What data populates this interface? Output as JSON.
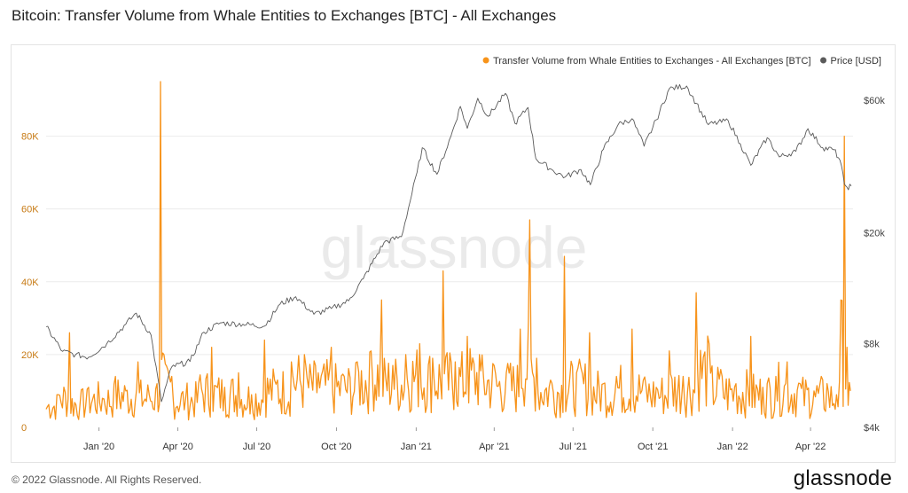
{
  "title": "Bitcoin: Transfer Volume from Whale Entities to Exchanges [BTC] - All Exchanges",
  "footer": {
    "copyright": "© 2022 Glassnode. All Rights Reserved.",
    "brand": "glassnode"
  },
  "watermark": "glassnode",
  "colors": {
    "volume": "#f7931a",
    "price": "#5a5a5a",
    "grid": "#ececec",
    "axis_left": "#c77a14",
    "axis_right": "#444444"
  },
  "chart_data": {
    "type": "line",
    "title": "Bitcoin: Transfer Volume from Whale Entities to Exchanges [BTC] - All Exchanges",
    "legend_position": "top-right",
    "grid": true,
    "x_axis": {
      "range": [
        "2019-11-01",
        "2022-05-20"
      ],
      "ticks": [
        {
          "date": "2020-01-01",
          "label": "Jan '20"
        },
        {
          "date": "2020-04-01",
          "label": "Apr '20"
        },
        {
          "date": "2020-07-01",
          "label": "Jul '20"
        },
        {
          "date": "2020-10-01",
          "label": "Oct '20"
        },
        {
          "date": "2021-01-01",
          "label": "Jan '21"
        },
        {
          "date": "2021-04-01",
          "label": "Apr '21"
        },
        {
          "date": "2021-07-01",
          "label": "Jul '21"
        },
        {
          "date": "2021-10-01",
          "label": "Oct '21"
        },
        {
          "date": "2022-01-01",
          "label": "Jan '22"
        },
        {
          "date": "2022-04-01",
          "label": "Apr '22"
        }
      ]
    },
    "y_left": {
      "range": [
        0,
        95000
      ],
      "ticks": [
        {
          "value": 0,
          "label": "0"
        },
        {
          "value": 20000,
          "label": "20K"
        },
        {
          "value": 40000,
          "label": "40K"
        },
        {
          "value": 60000,
          "label": "60K"
        },
        {
          "value": 80000,
          "label": "80K"
        }
      ]
    },
    "y_right": {
      "scale": "log",
      "range": [
        4000,
        70000
      ],
      "ticks": [
        {
          "value": 4000,
          "label": "$4k"
        },
        {
          "value": 8000,
          "label": "$8k"
        },
        {
          "value": 20000,
          "label": "$20k"
        },
        {
          "value": 60000,
          "label": "$60k"
        }
      ]
    },
    "series": [
      {
        "name": "Transfer Volume from Whale Entities to Exchanges - All Exchanges [BTC]",
        "axis": "left",
        "color": "#f7931a",
        "points": [
          [
            "2019-11-01",
            5000
          ],
          [
            "2019-11-15",
            9000
          ],
          [
            "2019-11-28",
            26000
          ],
          [
            "2019-12-10",
            6000
          ],
          [
            "2019-12-20",
            11000
          ],
          [
            "2020-01-05",
            8000
          ],
          [
            "2020-01-20",
            14000
          ],
          [
            "2020-02-01",
            10000
          ],
          [
            "2020-02-15",
            18000
          ],
          [
            "2020-02-28",
            9000
          ],
          [
            "2020-03-08",
            12000
          ],
          [
            "2020-03-12",
            95000
          ],
          [
            "2020-03-16",
            20000
          ],
          [
            "2020-03-25",
            14000
          ],
          [
            "2020-04-10",
            8000
          ],
          [
            "2020-04-25",
            12000
          ],
          [
            "2020-05-10",
            22000
          ],
          [
            "2020-05-25",
            11000
          ],
          [
            "2020-06-10",
            15000
          ],
          [
            "2020-06-25",
            9000
          ],
          [
            "2020-07-10",
            24000
          ],
          [
            "2020-07-25",
            13000
          ],
          [
            "2020-08-10",
            18000
          ],
          [
            "2020-08-25",
            20000
          ],
          [
            "2020-09-10",
            15000
          ],
          [
            "2020-09-25",
            22000
          ],
          [
            "2020-10-10",
            14000
          ],
          [
            "2020-10-25",
            18000
          ],
          [
            "2020-11-10",
            21000
          ],
          [
            "2020-11-22",
            35000
          ],
          [
            "2020-12-05",
            17000
          ],
          [
            "2020-12-20",
            20000
          ],
          [
            "2021-01-05",
            23000
          ],
          [
            "2021-01-20",
            19000
          ],
          [
            "2021-02-01",
            43000
          ],
          [
            "2021-02-15",
            18000
          ],
          [
            "2021-03-01",
            25000
          ],
          [
            "2021-03-15",
            20000
          ],
          [
            "2021-04-01",
            17000
          ],
          [
            "2021-04-15",
            15000
          ],
          [
            "2021-05-01",
            27000
          ],
          [
            "2021-05-12",
            57000
          ],
          [
            "2021-05-20",
            19000
          ],
          [
            "2021-06-05",
            13000
          ],
          [
            "2021-06-21",
            47000
          ],
          [
            "2021-07-05",
            15000
          ],
          [
            "2021-07-20",
            26000
          ],
          [
            "2021-08-05",
            12000
          ],
          [
            "2021-08-20",
            14000
          ],
          [
            "2021-09-07",
            27000
          ],
          [
            "2021-09-20",
            13000
          ],
          [
            "2021-10-05",
            11000
          ],
          [
            "2021-10-20",
            21000
          ],
          [
            "2021-11-05",
            14000
          ],
          [
            "2021-11-20",
            37000
          ],
          [
            "2021-12-05",
            23000
          ],
          [
            "2021-12-20",
            14000
          ],
          [
            "2022-01-05",
            12000
          ],
          [
            "2022-01-22",
            25000
          ],
          [
            "2022-02-05",
            11000
          ],
          [
            "2022-02-20",
            14000
          ],
          [
            "2022-03-05",
            18000
          ],
          [
            "2022-03-20",
            12000
          ],
          [
            "2022-04-05",
            10000
          ],
          [
            "2022-04-20",
            12000
          ],
          [
            "2022-05-01",
            9000
          ],
          [
            "2022-05-06",
            35000
          ],
          [
            "2022-05-10",
            80000
          ],
          [
            "2022-05-13",
            22000
          ],
          [
            "2022-05-17",
            10000
          ]
        ]
      },
      {
        "name": "Price [USD]",
        "axis": "right",
        "color": "#5a5a5a",
        "points": [
          [
            "2019-11-01",
            9200
          ],
          [
            "2019-11-20",
            7500
          ],
          [
            "2019-12-05",
            7300
          ],
          [
            "2019-12-20",
            7150
          ],
          [
            "2020-01-10",
            8000
          ],
          [
            "2020-02-01",
            9400
          ],
          [
            "2020-02-13",
            10300
          ],
          [
            "2020-03-01",
            8600
          ],
          [
            "2020-03-13",
            4950
          ],
          [
            "2020-03-25",
            6600
          ],
          [
            "2020-04-15",
            6900
          ],
          [
            "2020-05-01",
            8800
          ],
          [
            "2020-05-20",
            9500
          ],
          [
            "2020-06-15",
            9400
          ],
          [
            "2020-07-10",
            9250
          ],
          [
            "2020-07-28",
            11100
          ],
          [
            "2020-08-15",
            11800
          ],
          [
            "2020-09-05",
            10200
          ],
          [
            "2020-09-25",
            10700
          ],
          [
            "2020-10-15",
            11400
          ],
          [
            "2020-11-01",
            13700
          ],
          [
            "2020-11-25",
            18500
          ],
          [
            "2020-12-15",
            19400
          ],
          [
            "2021-01-02",
            33000
          ],
          [
            "2021-01-08",
            40500
          ],
          [
            "2021-01-25",
            32500
          ],
          [
            "2021-02-10",
            44500
          ],
          [
            "2021-02-21",
            57000
          ],
          [
            "2021-03-01",
            47500
          ],
          [
            "2021-03-13",
            61000
          ],
          [
            "2021-03-25",
            52500
          ],
          [
            "2021-04-14",
            63500
          ],
          [
            "2021-04-25",
            49500
          ],
          [
            "2021-05-10",
            56500
          ],
          [
            "2021-05-19",
            37000
          ],
          [
            "2021-06-08",
            33500
          ],
          [
            "2021-06-22",
            31800
          ],
          [
            "2021-07-10",
            33800
          ],
          [
            "2021-07-21",
            29800
          ],
          [
            "2021-08-05",
            40000
          ],
          [
            "2021-08-22",
            49000
          ],
          [
            "2021-09-07",
            51500
          ],
          [
            "2021-09-21",
            41000
          ],
          [
            "2021-10-05",
            51000
          ],
          [
            "2021-10-20",
            66000
          ],
          [
            "2021-11-09",
            67500
          ],
          [
            "2021-11-20",
            58500
          ],
          [
            "2021-12-04",
            49000
          ],
          [
            "2021-12-27",
            50700
          ],
          [
            "2022-01-10",
            41800
          ],
          [
            "2022-01-22",
            35000
          ],
          [
            "2022-02-10",
            44000
          ],
          [
            "2022-02-24",
            37500
          ],
          [
            "2022-03-15",
            39300
          ],
          [
            "2022-03-29",
            47400
          ],
          [
            "2022-04-15",
            40500
          ],
          [
            "2022-04-28",
            39800
          ],
          [
            "2022-05-05",
            36500
          ],
          [
            "2022-05-10",
            30000
          ],
          [
            "2022-05-13",
            29200
          ],
          [
            "2022-05-18",
            29500
          ]
        ]
      }
    ]
  }
}
